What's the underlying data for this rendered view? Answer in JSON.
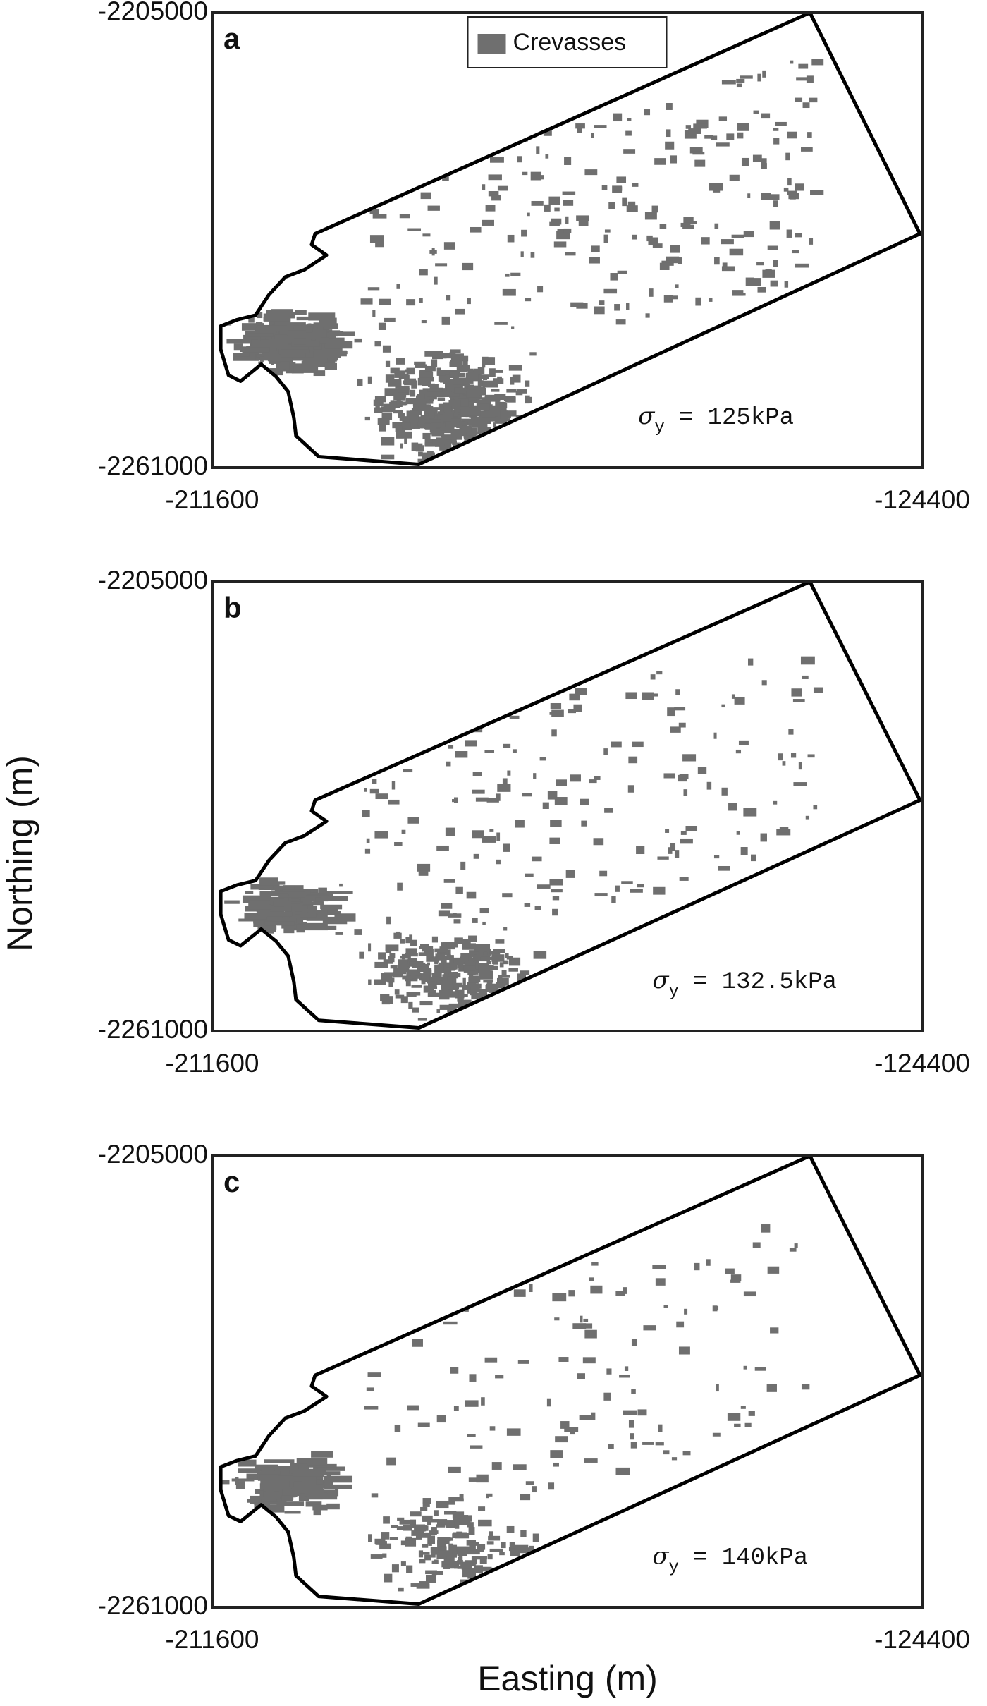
{
  "x_label": "Easting (m)",
  "y_label": "Northing (m)",
  "chart_data": [
    {
      "type": "map",
      "panel_label": "a",
      "xlim": [
        -211600,
        -124400
      ],
      "ylim": [
        -2261000,
        -2205000
      ],
      "xticks": [
        -211600,
        -124400
      ],
      "yticks": [
        -2261000,
        -2205000
      ],
      "legend": "top",
      "series": [
        {
          "name": "Crevasses",
          "color": "#6f6f6f"
        }
      ],
      "annotation": {
        "symbol": "σ",
        "subscript": "y",
        "text": "= 125kPa"
      }
    },
    {
      "type": "map",
      "panel_label": "b",
      "xlim": [
        -211600,
        -124400
      ],
      "ylim": [
        -2261000,
        -2205000
      ],
      "xticks": [
        -211600,
        -124400
      ],
      "yticks": [
        -2261000,
        -2205000
      ],
      "annotation": {
        "symbol": "σ",
        "subscript": "y",
        "text": "= 132.5kPa"
      }
    },
    {
      "type": "map",
      "panel_label": "c",
      "xlim": [
        -211600,
        -124400
      ],
      "ylim": [
        -2261000,
        -2205000
      ],
      "xticks": [
        -211600,
        -124400
      ],
      "yticks": [
        -2261000,
        -2205000
      ],
      "annotation": {
        "symbol": "σ",
        "subscript": "y",
        "text": "= 140kPa"
      }
    }
  ]
}
